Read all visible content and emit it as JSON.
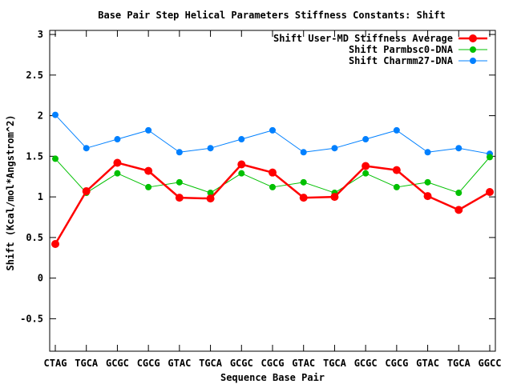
{
  "chart_data": {
    "type": "line",
    "title": "Base Pair Step Helical Parameters Stiffness Constants: Shift",
    "xlabel": "Sequence Base Pair",
    "ylabel": "Shift (Kcal/mol*Angstrom^2)",
    "categories": [
      "CTAG",
      "TGCA",
      "GCGC",
      "CGCG",
      "GTAC",
      "TGCA",
      "GCGC",
      "CGCG",
      "GTAC",
      "TGCA",
      "GCGC",
      "CGCG",
      "GTAC",
      "TGCA",
      "GGCC"
    ],
    "ylim": [
      -0.9,
      3.05
    ],
    "yticks": [
      -0.5,
      0,
      0.5,
      1,
      1.5,
      2,
      2.5,
      3
    ],
    "ytick_labels": [
      "-0.5",
      "0",
      "0.5",
      "1",
      "1.5",
      "2",
      "2.5",
      "3"
    ],
    "grid": false,
    "legend_position": "top-right",
    "series": [
      {
        "name": "Shift User-MD Stiffness Average",
        "color": "#ff0000",
        "line_width": 2.5,
        "marker_radius": 5,
        "values": [
          0.42,
          1.07,
          1.42,
          1.32,
          0.99,
          0.98,
          1.4,
          1.3,
          0.99,
          1.0,
          1.38,
          1.33,
          1.01,
          0.84,
          1.06
        ]
      },
      {
        "name": "Shift Parmbsc0-DNA",
        "color": "#00c000",
        "line_width": 1,
        "marker_radius": 4,
        "values": [
          1.47,
          1.05,
          1.29,
          1.12,
          1.18,
          1.05,
          1.29,
          1.12,
          1.18,
          1.05,
          1.29,
          1.12,
          1.18,
          1.05,
          1.49
        ]
      },
      {
        "name": "Shift Charmm27-DNA",
        "color": "#0080ff",
        "line_width": 1,
        "marker_radius": 4,
        "values": [
          2.01,
          1.6,
          1.71,
          1.82,
          1.55,
          1.6,
          1.71,
          1.82,
          1.55,
          1.6,
          1.71,
          1.82,
          1.55,
          1.6,
          1.53
        ]
      }
    ]
  }
}
